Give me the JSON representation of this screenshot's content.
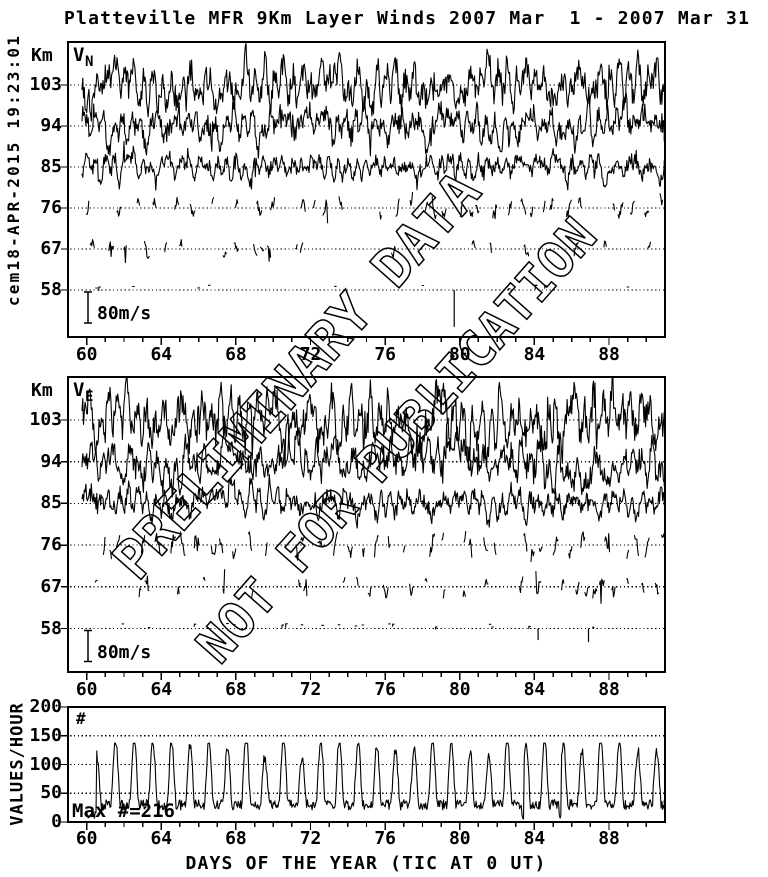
{
  "meta": {
    "render_timestamp": "cem18-APR-2015 19:23:01"
  },
  "title": "Platteville MFR 9Km Layer Winds 2007 Mar  1 - 2007 Mar 31",
  "watermark": {
    "line1": "PRELIMINARY DATA",
    "line2": "NOT FOR PUBLICATION"
  },
  "chart_data": [
    {
      "id": "meridional_wind_vn",
      "type": "line",
      "panel_label": "V",
      "panel_label_sub": "N",
      "y_unit": "Km",
      "y_tick_labels": [
        "103",
        "94",
        "85",
        "76",
        "67",
        "58"
      ],
      "altitudes_km": [
        103,
        94,
        85,
        76,
        67,
        58
      ],
      "x_tick_labels": [
        "60",
        "64",
        "68",
        "72",
        "76",
        "80",
        "84",
        "88"
      ],
      "x_major_ticks": [
        60,
        64,
        68,
        72,
        76,
        80,
        84,
        88
      ],
      "x_minor_tick_step_days": 1,
      "x_range_days": [
        59,
        91
      ],
      "scale_bar": {
        "label": "80m/s",
        "meters_per_second": 80
      },
      "series": [
        {
          "altitude_km": 103,
          "style": "continuous",
          "typical_amplitude_mps": 55,
          "coverage": 1.0
        },
        {
          "altitude_km": 94,
          "style": "continuous",
          "typical_amplitude_mps": 42,
          "coverage": 1.0
        },
        {
          "altitude_km": 85,
          "style": "continuous",
          "typical_amplitude_mps": 30,
          "coverage": 1.0
        },
        {
          "altitude_km": 76,
          "style": "intermittent",
          "typical_amplitude_mps": 22,
          "coverage": 0.45
        },
        {
          "altitude_km": 67,
          "style": "intermittent",
          "typical_amplitude_mps": 18,
          "coverage": 0.28
        },
        {
          "altitude_km": 58,
          "style": "sparse",
          "typical_amplitude_mps": 8,
          "coverage": 0.04
        }
      ],
      "annotations": [
        {
          "type": "downward_spike",
          "day": 79.7,
          "altitude_km": 58,
          "extent_mps": -95
        }
      ]
    },
    {
      "id": "zonal_wind_ve",
      "type": "line",
      "panel_label": "V",
      "panel_label_sub": "E",
      "y_unit": "Km",
      "y_tick_labels": [
        "103",
        "94",
        "85",
        "76",
        "67",
        "58"
      ],
      "altitudes_km": [
        103,
        94,
        85,
        76,
        67,
        58
      ],
      "x_tick_labels": [
        "60",
        "64",
        "68",
        "72",
        "76",
        "80",
        "84",
        "88"
      ],
      "x_major_ticks": [
        60,
        64,
        68,
        72,
        76,
        80,
        84,
        88
      ],
      "x_minor_tick_step_days": 1,
      "x_range_days": [
        59,
        91
      ],
      "scale_bar": {
        "label": "80m/s",
        "meters_per_second": 80
      },
      "series": [
        {
          "altitude_km": 103,
          "style": "continuous",
          "typical_amplitude_mps": 65,
          "coverage": 1.0
        },
        {
          "altitude_km": 94,
          "style": "continuous",
          "typical_amplitude_mps": 48,
          "coverage": 1.0
        },
        {
          "altitude_km": 85,
          "style": "continuous",
          "typical_amplitude_mps": 35,
          "coverage": 1.0
        },
        {
          "altitude_km": 76,
          "style": "intermittent",
          "typical_amplitude_mps": 26,
          "coverage": 0.55
        },
        {
          "altitude_km": 67,
          "style": "intermittent",
          "typical_amplitude_mps": 22,
          "coverage": 0.42
        },
        {
          "altitude_km": 58,
          "style": "sparse",
          "typical_amplitude_mps": 8,
          "coverage": 0.06
        }
      ],
      "annotations": [
        {
          "type": "downward_spike",
          "day": 84.2,
          "altitude_km": 58,
          "extent_mps": -30
        },
        {
          "type": "downward_spike",
          "day": 86.9,
          "altitude_km": 58,
          "extent_mps": -35
        }
      ]
    },
    {
      "id": "hourly_value_counts",
      "type": "line",
      "corner_label": "#",
      "ylabel": "VALUES/HOUR",
      "y_tick_labels": [
        "200",
        "150",
        "100",
        "50",
        "0"
      ],
      "y_ticks": [
        200,
        150,
        100,
        50,
        0
      ],
      "ylim": [
        0,
        200
      ],
      "gridlines_at": [
        50,
        100,
        150
      ],
      "x_tick_labels": [
        "60",
        "64",
        "68",
        "72",
        "76",
        "80",
        "84",
        "88"
      ],
      "x_major_ticks": [
        60,
        64,
        68,
        72,
        76,
        80,
        84,
        88
      ],
      "x_minor_tick_step_days": 1,
      "x_range_days": [
        59,
        91
      ],
      "xlabel": "DAYS OF THE YEAR (TIC AT 0 UT)",
      "max_label": "Max #=216",
      "max_count": 216,
      "pattern": {
        "shape": "diurnal_cycle",
        "typical_peak": 130,
        "typical_minimum": 30,
        "low_days": [
          83,
          85
        ]
      }
    }
  ]
}
